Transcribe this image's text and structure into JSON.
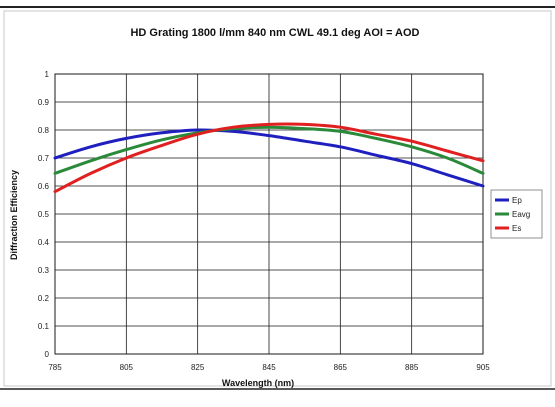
{
  "chart_data": {
    "type": "line",
    "title": "HD Grating 1800 l/mm 840 nm CWL 49.1 deg AOI = AOD",
    "xlabel": "Wavelength (nm)",
    "ylabel": "Diffraction Efficiency",
    "xlim": [
      785,
      905
    ],
    "ylim": [
      0,
      1
    ],
    "x_ticks": [
      785,
      805,
      825,
      845,
      865,
      885,
      905
    ],
    "y_ticks": [
      0,
      0.1,
      0.2,
      0.3,
      0.4,
      0.5,
      0.6,
      0.7,
      0.8,
      0.9,
      1
    ],
    "y_tick_labels": [
      "0",
      "0.1",
      "0.2",
      "0.3",
      "0.4",
      "0.5",
      "0.6",
      "0.7",
      "0.8",
      "0.9",
      "1"
    ],
    "grid": true,
    "legend_position": "right",
    "x": [
      785,
      795,
      805,
      815,
      825,
      835,
      845,
      855,
      865,
      875,
      885,
      895,
      905
    ],
    "series": [
      {
        "name": "Ep",
        "color": "#1f1fbf",
        "values": [
          0.7,
          0.74,
          0.77,
          0.79,
          0.8,
          0.795,
          0.78,
          0.76,
          0.74,
          0.71,
          0.68,
          0.64,
          0.6
        ]
      },
      {
        "name": "Eavg",
        "color": "#2a8a3a",
        "values": [
          0.645,
          0.69,
          0.73,
          0.765,
          0.79,
          0.805,
          0.81,
          0.805,
          0.795,
          0.77,
          0.74,
          0.7,
          0.645
        ]
      },
      {
        "name": "Es",
        "color": "#e02020",
        "values": [
          0.58,
          0.645,
          0.7,
          0.745,
          0.785,
          0.81,
          0.82,
          0.82,
          0.81,
          0.785,
          0.76,
          0.725,
          0.69
        ]
      }
    ]
  }
}
